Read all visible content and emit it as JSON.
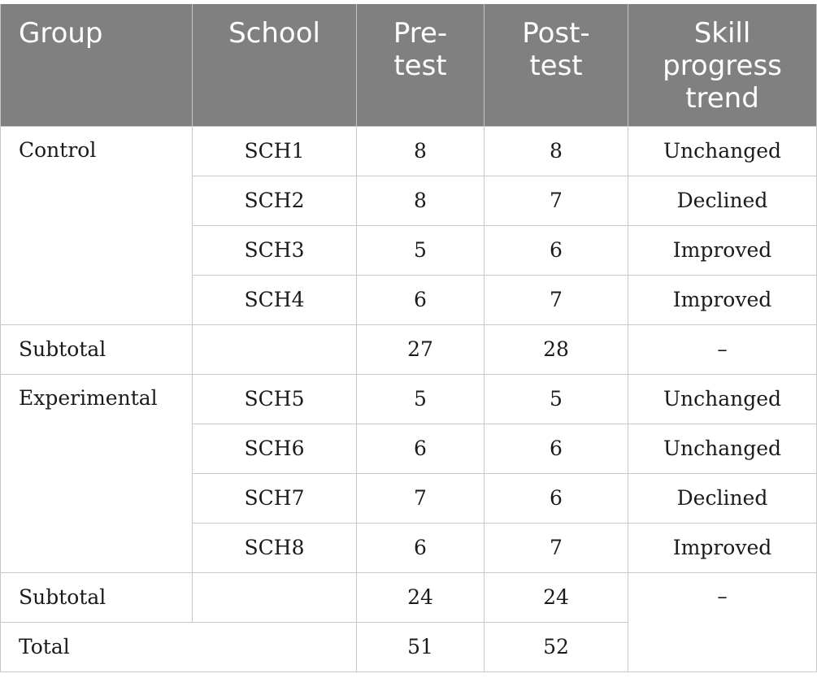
{
  "headers": {
    "group": "Group",
    "school": "School",
    "pretest": "Pre-test",
    "posttest": "Post-test",
    "trend": "Skill progress trend"
  },
  "control": {
    "group": "Control",
    "rows": [
      {
        "school": "SCH1",
        "pre": "8",
        "post": "8",
        "trend": "Unchanged"
      },
      {
        "school": "SCH2",
        "pre": "8",
        "post": "7",
        "trend": "Declined"
      },
      {
        "school": "SCH3",
        "pre": "5",
        "post": "6",
        "trend": "Improved"
      },
      {
        "school": "SCH4",
        "pre": "6",
        "post": "7",
        "trend": "Improved"
      }
    ],
    "subtotal": {
      "label": "Subtotal",
      "pre": "27",
      "post": "28",
      "trend": "–"
    }
  },
  "experimental": {
    "group": "Experimental",
    "rows": [
      {
        "school": "SCH5",
        "pre": "5",
        "post": "5",
        "trend": "Unchanged"
      },
      {
        "school": "SCH6",
        "pre": "6",
        "post": "6",
        "trend": "Unchanged"
      },
      {
        "school": "SCH7",
        "pre": "7",
        "post": "6",
        "trend": "Declined"
      },
      {
        "school": "SCH8",
        "pre": "6",
        "post": "7",
        "trend": "Improved"
      }
    ],
    "subtotal": {
      "label": "Subtotal",
      "pre": "24",
      "post": "24",
      "trend": "–"
    }
  },
  "total": {
    "label": "Total",
    "pre": "51",
    "post": "52"
  }
}
